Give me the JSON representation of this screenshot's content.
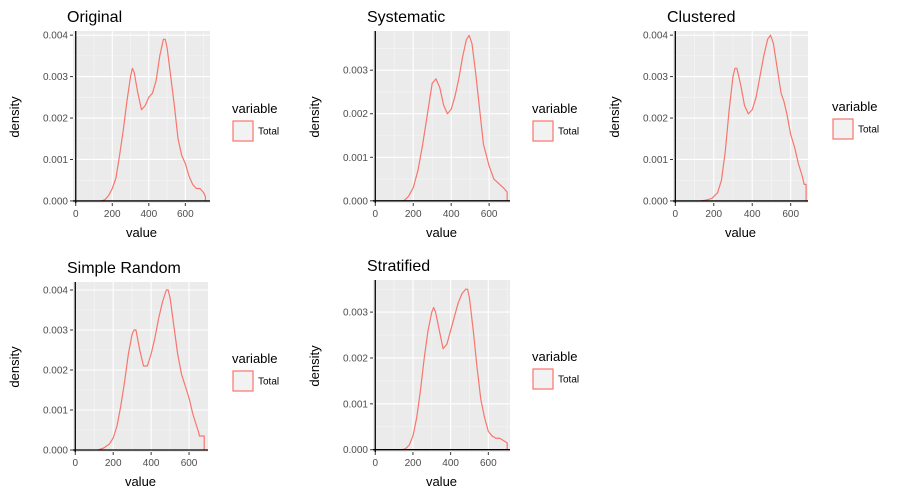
{
  "chart_data": [
    {
      "type": "area",
      "title": "Original",
      "xlabel": "value",
      "ylabel": "density",
      "xlim": [
        -15,
        735
      ],
      "ylim": [
        -5e-05,
        0.0041
      ],
      "x_ticks": [
        0,
        200,
        400,
        600
      ],
      "x_tick_labels": [
        "0",
        "200",
        "400",
        "600"
      ],
      "y_ticks": [
        0,
        0.001,
        0.002,
        0.003,
        0.004
      ],
      "y_tick_labels": [
        "0.000",
        "0.001",
        "0.002",
        "0.003",
        "0.004"
      ],
      "grid": true,
      "legend": {
        "title": "variable",
        "entries": [
          "Total"
        ],
        "placement": "right"
      },
      "series": [
        {
          "name": "Total",
          "color": "#F8766D",
          "x": [
            140,
            160,
            180,
            200,
            220,
            240,
            260,
            280,
            300,
            310,
            320,
            340,
            360,
            380,
            400,
            420,
            440,
            460,
            480,
            490,
            500,
            520,
            540,
            560,
            580,
            600,
            620,
            640,
            660,
            680,
            700,
            710
          ],
          "y": [
            0.0,
            3e-05,
            0.00013,
            0.0003,
            0.00055,
            0.0011,
            0.0017,
            0.0024,
            0.003,
            0.0032,
            0.0031,
            0.0026,
            0.0022,
            0.0023,
            0.0025,
            0.0026,
            0.0029,
            0.0035,
            0.0039,
            0.0039,
            0.0037,
            0.003,
            0.0023,
            0.0015,
            0.0011,
            0.0009,
            0.0006,
            0.0004,
            0.0003,
            0.0003,
            0.0002,
            0.0001
          ]
        }
      ]
    },
    {
      "type": "area",
      "title": "Systematic",
      "xlabel": "value",
      "ylabel": "density",
      "xlim": [
        -12,
        710
      ],
      "ylim": [
        -5e-05,
        0.0039
      ],
      "x_ticks": [
        0,
        200,
        400,
        600
      ],
      "x_tick_labels": [
        "0",
        "200",
        "400",
        "600"
      ],
      "y_ticks": [
        0,
        0.001,
        0.002,
        0.003
      ],
      "y_tick_labels": [
        "0.000",
        "0.001",
        "0.002",
        "0.003"
      ],
      "grid": true,
      "legend": {
        "title": "variable",
        "entries": [
          "Total"
        ],
        "placement": "right"
      },
      "series": [
        {
          "name": "Total",
          "color": "#F8766D",
          "x": [
            150,
            175,
            200,
            225,
            250,
            275,
            300,
            320,
            340,
            360,
            380,
            400,
            420,
            440,
            460,
            480,
            495,
            510,
            530,
            550,
            570,
            600,
            625,
            650,
            675,
            695
          ],
          "y": [
            0.0,
            0.0001,
            0.0003,
            0.0007,
            0.0013,
            0.002,
            0.0027,
            0.0028,
            0.0026,
            0.0022,
            0.002,
            0.0021,
            0.0024,
            0.0028,
            0.0033,
            0.0037,
            0.0038,
            0.0036,
            0.0029,
            0.0021,
            0.0013,
            0.0008,
            0.0005,
            0.0004,
            0.0003,
            0.0002
          ]
        }
      ]
    },
    {
      "type": "area",
      "title": "Clustered",
      "xlabel": "value",
      "ylabel": "density",
      "xlim": [
        -12,
        690
      ],
      "ylim": [
        -5e-05,
        0.0041
      ],
      "x_ticks": [
        0,
        200,
        400,
        600
      ],
      "x_tick_labels": [
        "0",
        "200",
        "400",
        "600"
      ],
      "y_ticks": [
        0,
        0.001,
        0.002,
        0.003,
        0.004
      ],
      "y_tick_labels": [
        "0.000",
        "0.001",
        "0.002",
        "0.003",
        "0.004"
      ],
      "grid": true,
      "legend": {
        "title": "variable",
        "entries": [
          "Total"
        ],
        "placement": "right"
      },
      "series": [
        {
          "name": "Total",
          "color": "#F8766D",
          "x": [
            130,
            160,
            190,
            220,
            240,
            260,
            280,
            300,
            310,
            320,
            340,
            360,
            380,
            400,
            420,
            440,
            460,
            480,
            495,
            510,
            530,
            550,
            565,
            580,
            600,
            620,
            640,
            660,
            670,
            680
          ],
          "y": [
            0.0,
            2e-05,
            6e-05,
            0.0002,
            0.0005,
            0.0012,
            0.0022,
            0.003,
            0.0032,
            0.0032,
            0.0028,
            0.0023,
            0.0021,
            0.0022,
            0.0025,
            0.003,
            0.0035,
            0.0039,
            0.004,
            0.0038,
            0.0032,
            0.0026,
            0.0024,
            0.0021,
            0.0016,
            0.0013,
            0.0009,
            0.0006,
            0.0004,
            0.0004
          ]
        }
      ]
    },
    {
      "type": "area",
      "title": "Simple Random",
      "xlabel": "value",
      "ylabel": "density",
      "xlim": [
        -12,
        700
      ],
      "ylim": [
        -5e-05,
        0.0042
      ],
      "x_ticks": [
        0,
        200,
        400,
        600
      ],
      "x_tick_labels": [
        "0",
        "200",
        "400",
        "600"
      ],
      "y_ticks": [
        0,
        0.001,
        0.002,
        0.003,
        0.004
      ],
      "y_tick_labels": [
        "0.000",
        "0.001",
        "0.002",
        "0.003",
        "0.004"
      ],
      "grid": true,
      "legend": {
        "title": "variable",
        "entries": [
          "Total"
        ],
        "placement": "right"
      },
      "series": [
        {
          "name": "Total",
          "color": "#F8766D",
          "x": [
            120,
            150,
            180,
            200,
            220,
            240,
            260,
            280,
            300,
            310,
            320,
            340,
            360,
            380,
            400,
            420,
            440,
            460,
            480,
            490,
            500,
            520,
            540,
            560,
            580,
            600,
            620,
            640,
            650,
            655,
            680
          ],
          "y": [
            0.0,
            5e-05,
            0.00015,
            0.0003,
            0.0006,
            0.0011,
            0.0017,
            0.0024,
            0.0029,
            0.003,
            0.003,
            0.0025,
            0.0021,
            0.0021,
            0.0024,
            0.0028,
            0.0033,
            0.0037,
            0.004,
            0.004,
            0.0038,
            0.0031,
            0.0024,
            0.0019,
            0.0016,
            0.0013,
            0.0009,
            0.0006,
            0.00045,
            0.00035,
            0.00035
          ]
        }
      ]
    },
    {
      "type": "area",
      "title": "Stratified",
      "xlabel": "value",
      "ylabel": "density",
      "xlim": [
        -12,
        715
      ],
      "ylim": [
        -5e-05,
        0.0037
      ],
      "x_ticks": [
        0,
        200,
        400,
        600
      ],
      "x_tick_labels": [
        "0",
        "200",
        "400",
        "600"
      ],
      "y_ticks": [
        0,
        0.001,
        0.002,
        0.003
      ],
      "y_tick_labels": [
        "0.000",
        "0.001",
        "0.002",
        "0.003"
      ],
      "grid": true,
      "legend": {
        "title": "variable",
        "entries": [
          "Total"
        ],
        "placement": "right"
      },
      "series": [
        {
          "name": "Total",
          "color": "#F8766D",
          "x": [
            140,
            160,
            180,
            200,
            220,
            240,
            260,
            280,
            300,
            310,
            320,
            340,
            360,
            380,
            400,
            420,
            440,
            460,
            480,
            490,
            500,
            520,
            540,
            560,
            580,
            600,
            620,
            640,
            660,
            680,
            700
          ],
          "y": [
            0.0,
            2e-05,
            0.0001,
            0.0003,
            0.0007,
            0.0013,
            0.002,
            0.0026,
            0.003,
            0.0031,
            0.003,
            0.0026,
            0.0022,
            0.0023,
            0.0026,
            0.0029,
            0.0032,
            0.0034,
            0.0035,
            0.0035,
            0.0033,
            0.0026,
            0.0018,
            0.0011,
            0.0007,
            0.0004,
            0.0003,
            0.00025,
            0.00025,
            0.0002,
            0.00015
          ]
        }
      ]
    }
  ]
}
